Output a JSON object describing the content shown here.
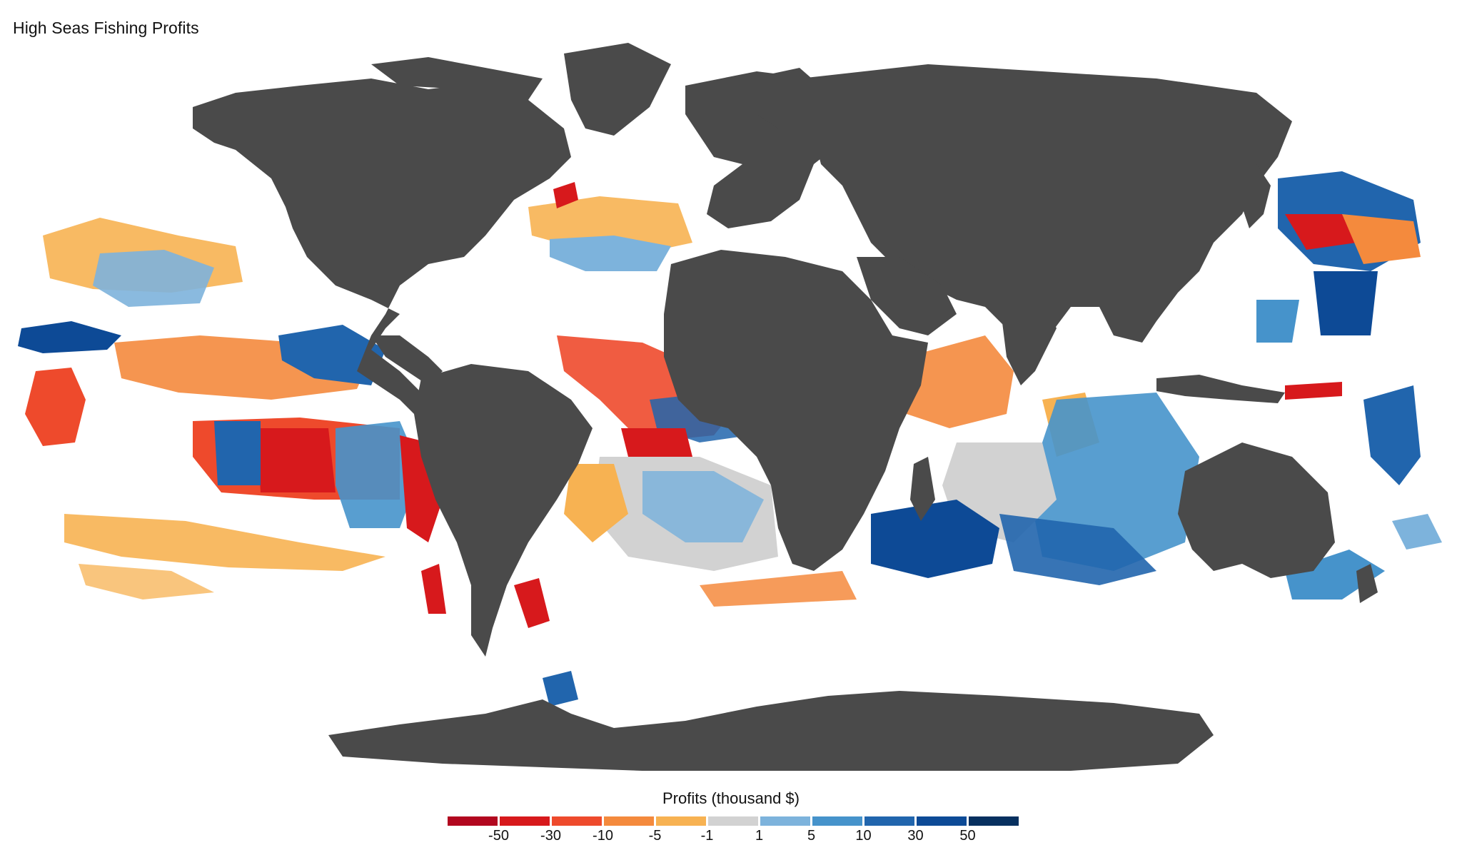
{
  "title": "High Seas Fishing Profits",
  "land_color": "#4a4a4a",
  "legend": {
    "title": "Profits (thousand $)",
    "swatches": [
      {
        "name": "swatch-below-50",
        "color": "#b2071f"
      },
      {
        "name": "swatch-50-30",
        "color": "#d7191c"
      },
      {
        "name": "swatch-30-10",
        "color": "#ee4a2c"
      },
      {
        "name": "swatch-10-5",
        "color": "#f48a3d"
      },
      {
        "name": "swatch-5-1",
        "color": "#f7b252"
      },
      {
        "name": "swatch-1-1",
        "color": "#d2d2d2"
      },
      {
        "name": "swatch-1-5",
        "color": "#7db3dc"
      },
      {
        "name": "swatch-5-10",
        "color": "#4693cb"
      },
      {
        "name": "swatch-10-30",
        "color": "#2165ad"
      },
      {
        "name": "swatch-30-50",
        "color": "#0d4a96"
      },
      {
        "name": "swatch-above-50",
        "color": "#07305f"
      }
    ],
    "ticks": [
      "-50",
      "-30",
      "-10",
      "-5",
      "-1",
      "1",
      "5",
      "10",
      "30",
      "50"
    ]
  }
}
